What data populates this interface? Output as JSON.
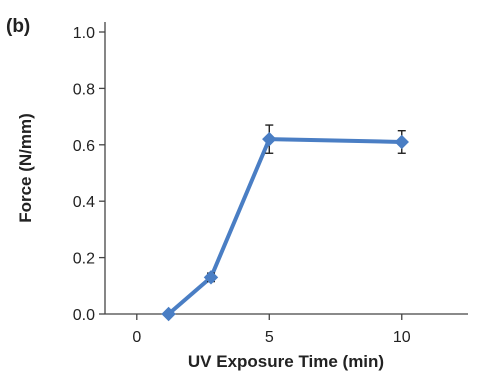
{
  "panel_label": "(b)",
  "chart_data": {
    "type": "line",
    "title": "",
    "xlabel": "UV Exposure Time (min)",
    "ylabel": "Force (N/mm)",
    "xlim": [
      -1.2,
      12.5
    ],
    "ylim": [
      0.0,
      1.0
    ],
    "x_ticks": [
      0,
      5,
      10
    ],
    "x_tick_labels": [
      "0",
      "5",
      "10"
    ],
    "y_ticks": [
      0.0,
      0.2,
      0.4,
      0.6,
      0.8,
      1.0
    ],
    "y_tick_labels": [
      "0.0",
      "0.2",
      "0.4",
      "0.6",
      "0.8",
      "1.0"
    ],
    "grid": false,
    "series": [
      {
        "color": "#4a7ec4",
        "marker": "diamond",
        "x": [
          1.2,
          2.8,
          5,
          10
        ],
        "y": [
          0.0,
          0.13,
          0.62,
          0.61
        ],
        "error": [
          0.0,
          0.015,
          0.05,
          0.04
        ]
      }
    ]
  }
}
